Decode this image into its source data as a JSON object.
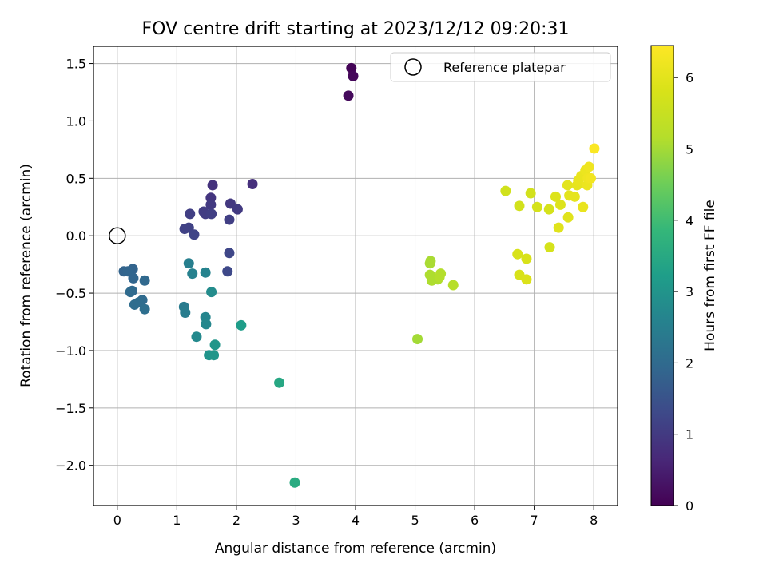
{
  "chart_data": {
    "type": "scatter",
    "title": "FOV centre drift starting at 2023/12/12 09:20:31",
    "xlabel": "Angular distance from reference (arcmin)",
    "ylabel": "Rotation from reference (arcmin)",
    "colorbar_label": "Hours from first FF file",
    "xlim": [
      -0.4,
      8.4
    ],
    "ylim": [
      -2.35,
      1.65
    ],
    "clim": [
      0,
      6.45
    ],
    "colormap": "viridis",
    "grid": true,
    "legend_position": "upper right",
    "x_ticks": [
      0,
      1,
      2,
      3,
      4,
      5,
      6,
      7,
      8
    ],
    "x_tick_labels": [
      "0",
      "1",
      "2",
      "3",
      "4",
      "5",
      "6",
      "7",
      "8"
    ],
    "y_ticks": [
      -2.0,
      -1.5,
      -1.0,
      -0.5,
      0.0,
      0.5,
      1.0,
      1.5
    ],
    "y_tick_labels": [
      "−2.0",
      "−1.5",
      "−1.0",
      "−0.5",
      "0.0",
      "0.5",
      "1.0",
      "1.5"
    ],
    "colorbar_ticks": [
      0,
      1,
      2,
      3,
      4,
      5,
      6
    ],
    "colorbar_tick_labels": [
      "0",
      "1",
      "2",
      "3",
      "4",
      "5",
      "6"
    ],
    "reference": {
      "label": "Reference platepar",
      "x": 0,
      "y": 0
    },
    "points": [
      {
        "x": 3.93,
        "y": 1.46,
        "h": 0.05
      },
      {
        "x": 3.96,
        "y": 1.39,
        "h": 0.1
      },
      {
        "x": 3.88,
        "y": 1.22,
        "h": 0.15
      },
      {
        "x": 2.27,
        "y": 0.45,
        "h": 0.8
      },
      {
        "x": 1.6,
        "y": 0.44,
        "h": 0.85
      },
      {
        "x": 1.57,
        "y": 0.33,
        "h": 0.9
      },
      {
        "x": 1.9,
        "y": 0.28,
        "h": 0.95
      },
      {
        "x": 2.02,
        "y": 0.23,
        "h": 1.0
      },
      {
        "x": 1.57,
        "y": 0.27,
        "h": 1.0
      },
      {
        "x": 1.45,
        "y": 0.21,
        "h": 1.05
      },
      {
        "x": 1.48,
        "y": 0.19,
        "h": 1.05
      },
      {
        "x": 1.58,
        "y": 0.19,
        "h": 1.1
      },
      {
        "x": 1.22,
        "y": 0.19,
        "h": 1.1
      },
      {
        "x": 1.88,
        "y": 0.14,
        "h": 1.1
      },
      {
        "x": 1.2,
        "y": 0.07,
        "h": 1.15
      },
      {
        "x": 1.13,
        "y": 0.06,
        "h": 1.15
      },
      {
        "x": 1.29,
        "y": 0.01,
        "h": 1.2
      },
      {
        "x": 1.88,
        "y": -0.15,
        "h": 1.25
      },
      {
        "x": 1.85,
        "y": -0.31,
        "h": 1.3
      },
      {
        "x": 0.11,
        "y": -0.31,
        "h": 1.85
      },
      {
        "x": 0.26,
        "y": -0.29,
        "h": 1.85
      },
      {
        "x": 0.18,
        "y": -0.31,
        "h": 1.9
      },
      {
        "x": 0.27,
        "y": -0.37,
        "h": 1.9
      },
      {
        "x": 0.46,
        "y": -0.39,
        "h": 1.95
      },
      {
        "x": 0.25,
        "y": -0.48,
        "h": 1.95
      },
      {
        "x": 0.22,
        "y": -0.49,
        "h": 2.0
      },
      {
        "x": 0.42,
        "y": -0.56,
        "h": 2.0
      },
      {
        "x": 0.29,
        "y": -0.6,
        "h": 2.05
      },
      {
        "x": 0.36,
        "y": -0.58,
        "h": 2.05
      },
      {
        "x": 0.46,
        "y": -0.64,
        "h": 2.1
      },
      {
        "x": 1.12,
        "y": -0.62,
        "h": 2.4
      },
      {
        "x": 1.14,
        "y": -0.67,
        "h": 2.45
      },
      {
        "x": 1.2,
        "y": -0.24,
        "h": 2.5
      },
      {
        "x": 1.26,
        "y": -0.33,
        "h": 2.55
      },
      {
        "x": 1.48,
        "y": -0.32,
        "h": 2.6
      },
      {
        "x": 1.48,
        "y": -0.71,
        "h": 2.65
      },
      {
        "x": 1.49,
        "y": -0.77,
        "h": 2.7
      },
      {
        "x": 1.33,
        "y": -0.88,
        "h": 2.75
      },
      {
        "x": 1.58,
        "y": -0.49,
        "h": 2.8
      },
      {
        "x": 1.54,
        "y": -1.04,
        "h": 3.0
      },
      {
        "x": 1.64,
        "y": -0.95,
        "h": 3.05
      },
      {
        "x": 1.62,
        "y": -1.04,
        "h": 3.05
      },
      {
        "x": 2.08,
        "y": -0.78,
        "h": 3.2
      },
      {
        "x": 2.72,
        "y": -1.28,
        "h": 3.45
      },
      {
        "x": 2.98,
        "y": -2.15,
        "h": 3.55
      },
      {
        "x": 5.04,
        "y": -0.9,
        "h": 5.0
      },
      {
        "x": 5.26,
        "y": -0.22,
        "h": 5.05
      },
      {
        "x": 5.25,
        "y": -0.24,
        "h": 5.05
      },
      {
        "x": 5.25,
        "y": -0.34,
        "h": 5.1
      },
      {
        "x": 5.28,
        "y": -0.39,
        "h": 5.1
      },
      {
        "x": 5.38,
        "y": -0.38,
        "h": 5.1
      },
      {
        "x": 5.41,
        "y": -0.36,
        "h": 5.15
      },
      {
        "x": 5.43,
        "y": -0.33,
        "h": 5.15
      },
      {
        "x": 5.64,
        "y": -0.43,
        "h": 5.2
      },
      {
        "x": 6.52,
        "y": 0.39,
        "h": 5.65
      },
      {
        "x": 6.75,
        "y": 0.26,
        "h": 5.7
      },
      {
        "x": 6.94,
        "y": 0.37,
        "h": 5.7
      },
      {
        "x": 7.05,
        "y": 0.25,
        "h": 5.75
      },
      {
        "x": 7.25,
        "y": 0.23,
        "h": 5.75
      },
      {
        "x": 7.26,
        "y": -0.1,
        "h": 5.75
      },
      {
        "x": 6.72,
        "y": -0.16,
        "h": 5.8
      },
      {
        "x": 6.75,
        "y": -0.34,
        "h": 5.8
      },
      {
        "x": 6.87,
        "y": -0.2,
        "h": 5.8
      },
      {
        "x": 6.87,
        "y": -0.38,
        "h": 5.85
      },
      {
        "x": 7.36,
        "y": 0.34,
        "h": 5.9
      },
      {
        "x": 7.44,
        "y": 0.27,
        "h": 5.9
      },
      {
        "x": 7.41,
        "y": 0.07,
        "h": 5.95
      },
      {
        "x": 7.57,
        "y": 0.16,
        "h": 5.95
      },
      {
        "x": 7.56,
        "y": 0.44,
        "h": 6.0
      },
      {
        "x": 7.59,
        "y": 0.35,
        "h": 6.0
      },
      {
        "x": 7.68,
        "y": 0.34,
        "h": 6.05
      },
      {
        "x": 7.72,
        "y": 0.44,
        "h": 6.05
      },
      {
        "x": 7.74,
        "y": 0.48,
        "h": 6.1
      },
      {
        "x": 7.79,
        "y": 0.52,
        "h": 6.1
      },
      {
        "x": 7.82,
        "y": 0.25,
        "h": 6.1
      },
      {
        "x": 7.86,
        "y": 0.57,
        "h": 6.15
      },
      {
        "x": 7.89,
        "y": 0.44,
        "h": 6.15
      },
      {
        "x": 7.9,
        "y": 0.5,
        "h": 6.2
      },
      {
        "x": 7.92,
        "y": 0.6,
        "h": 6.2
      },
      {
        "x": 7.95,
        "y": 0.5,
        "h": 6.25
      },
      {
        "x": 8.01,
        "y": 0.76,
        "h": 6.4
      }
    ]
  }
}
